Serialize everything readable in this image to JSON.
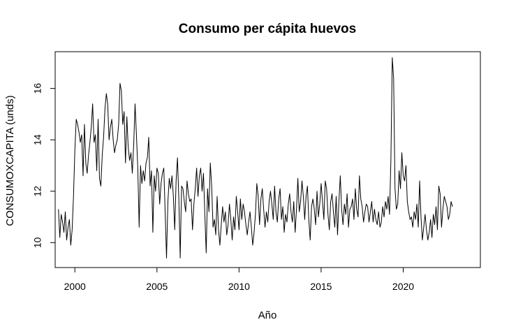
{
  "chart_data": {
    "type": "line",
    "title": "Consumo per cápita huevos",
    "xlabel": "Año",
    "ylabel": "CONSUMOXCAPITA (unds)",
    "xlim": [
      1998.8,
      2024.7
    ],
    "ylim": [
      9.03,
      17.43
    ],
    "x_ticks": [
      2000,
      2005,
      2010,
      2015,
      2020
    ],
    "y_ticks": [
      10,
      12,
      14,
      16
    ],
    "grid": false,
    "legend": "none",
    "line_color": "#000000",
    "start": 1999.0,
    "frequency": 12,
    "series": [
      {
        "values": [
          11.3,
          10.2,
          11.1,
          10.8,
          10.4,
          11.2,
          10.1,
          10.6,
          10.9,
          9.9,
          10.5,
          11.8,
          13.6,
          14.8,
          14.6,
          14.3,
          13.9,
          14.2,
          12.6,
          14.6,
          13.1,
          12.7,
          13.4,
          13.9,
          14.5,
          15.4,
          13.9,
          14.2,
          12.8,
          14.8,
          12.5,
          12.2,
          13.4,
          14.1,
          15.2,
          15.8,
          15.4,
          14.0,
          14.5,
          14.8,
          14.0,
          13.5,
          13.8,
          14.0,
          14.6,
          16.2,
          15.9,
          14.6,
          15.1,
          13.1,
          14.9,
          13.7,
          13.2,
          13.5,
          12.7,
          13.8,
          15.4,
          14.2,
          12.9,
          10.6,
          13.0,
          12.3,
          12.8,
          12.4,
          13.1,
          13.3,
          14.1,
          12.2,
          12.8,
          10.4,
          12.6,
          12.0,
          12.9,
          12.7,
          11.5,
          12.3,
          12.7,
          12.9,
          11.2,
          9.4,
          11.6,
          12.5,
          12.1,
          12.6,
          11.8,
          10.5,
          12.4,
          13.3,
          11.7,
          9.4,
          12.2,
          12.1,
          11.6,
          11.2,
          12.4,
          11.9,
          11.6,
          11.7,
          10.5,
          11.5,
          12.1,
          12.9,
          11.8,
          12.6,
          12.9,
          12.0,
          12.7,
          11.1,
          9.6,
          12.1,
          11.2,
          13.1,
          12.2,
          10.6,
          10.9,
          10.3,
          11.8,
          10.5,
          9.9,
          10.7,
          11.4,
          10.8,
          11.2,
          10.3,
          10.7,
          11.5,
          10.9,
          10.1,
          11.0,
          10.5,
          11.8,
          11.2,
          10.5,
          11.7,
          10.9,
          11.5,
          11.2,
          10.7,
          10.3,
          10.8,
          11.2,
          10.6,
          9.9,
          10.4,
          11.1,
          12.3,
          11.8,
          10.7,
          11.7,
          12.1,
          11.3,
          10.6,
          11.2,
          10.8,
          11.6,
          12.0,
          11.5,
          10.9,
          12.2,
          11.2,
          10.8,
          11.7,
          12.1,
          10.9,
          11.4,
          10.4,
          11.1,
          10.8,
          11.5,
          11.9,
          11.2,
          10.8,
          11.6,
          10.4,
          11.3,
          12.5,
          11.2,
          11.6,
          12.4,
          11.8,
          10.9,
          11.8,
          12.2,
          10.9,
          10.1,
          11.4,
          11.7,
          11.3,
          10.7,
          12.0,
          11.0,
          11.5,
          12.3,
          11.6,
          10.9,
          12.4,
          12.1,
          11.1,
          10.5,
          11.6,
          11.9,
          11.2,
          10.6,
          11.8,
          10.3,
          11.6,
          12.6,
          11.3,
          10.7,
          11.5,
          11.1,
          11.9,
          10.6,
          11.3,
          11.4,
          11.7,
          10.9,
          12.1,
          11.3,
          11.0,
          12.6,
          11.7,
          11.4,
          10.8,
          11.2,
          11.5,
          11.4,
          10.8,
          11.2,
          11.6,
          10.8,
          11.3,
          10.9,
          10.7,
          11.2,
          10.6,
          10.8,
          11.4,
          11.0,
          11.6,
          11.3,
          11.8,
          11.1,
          13.2,
          17.2,
          16.4,
          12.1,
          11.3,
          11.5,
          12.8,
          12.1,
          13.5,
          12.6,
          12.4,
          13.0,
          11.6,
          11.2,
          10.9,
          11.0,
          10.6,
          11.2,
          10.9,
          11.5,
          10.6,
          12.4,
          11.0,
          10.1,
          10.6,
          11.1,
          10.5,
          10.1,
          10.4,
          10.9,
          10.2,
          11.1,
          10.7,
          11.4,
          10.5,
          12.2,
          11.9,
          10.6,
          11.3,
          11.8,
          11.6,
          11.4,
          10.9,
          11.1,
          11.6,
          11.4
        ]
      }
    ]
  }
}
